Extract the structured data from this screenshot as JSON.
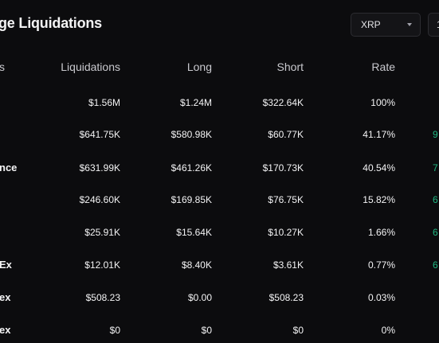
{
  "title": "ge Liquidations",
  "coin_select": {
    "value": "XRP",
    "icon": "chevron-down-icon"
  },
  "time_select": {
    "value": "1"
  },
  "columns": [
    "s",
    "Liquidations",
    "Long",
    "Short",
    "Rate"
  ],
  "rows": [
    {
      "exchange": "",
      "liquidations": "$1.56M",
      "long": "$1.24M",
      "short": "$322.64K",
      "rate": "100%",
      "extra": ""
    },
    {
      "exchange": "",
      "liquidations": "$641.75K",
      "long": "$580.98K",
      "short": "$60.77K",
      "rate": "41.17%",
      "extra": "9"
    },
    {
      "exchange": "nce",
      "liquidations": "$631.99K",
      "long": "$461.26K",
      "short": "$170.73K",
      "rate": "40.54%",
      "extra": "7"
    },
    {
      "exchange": "",
      "liquidations": "$246.60K",
      "long": "$169.85K",
      "short": "$76.75K",
      "rate": "15.82%",
      "extra": "6"
    },
    {
      "exchange": "",
      "liquidations": "$25.91K",
      "long": "$15.64K",
      "short": "$10.27K",
      "rate": "1.66%",
      "extra": "6"
    },
    {
      "exchange": "Ex",
      "liquidations": "$12.01K",
      "long": "$8.40K",
      "short": "$3.61K",
      "rate": "0.77%",
      "extra": "6"
    },
    {
      "exchange": "ex",
      "liquidations": "$508.23",
      "long": "$0.00",
      "short": "$508.23",
      "rate": "0.03%",
      "extra": ""
    },
    {
      "exchange": "ex",
      "liquidations": "$0",
      "long": "$0",
      "short": "$0",
      "rate": "0%",
      "extra": ""
    }
  ],
  "colors": {
    "background": "#0c0c0e",
    "positive": "#1fb782",
    "text": "#f4f4f5",
    "header": "#c9c9ce"
  }
}
